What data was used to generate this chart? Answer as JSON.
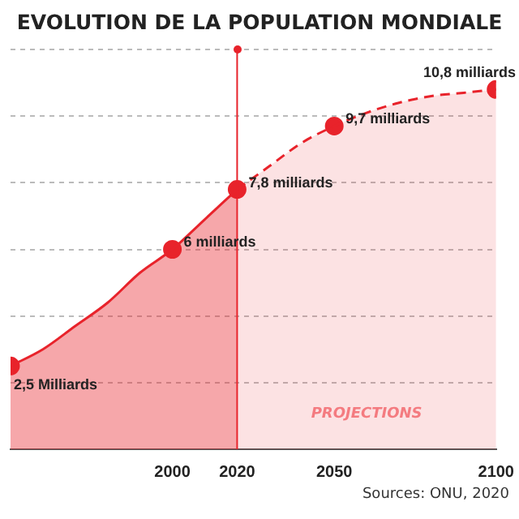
{
  "chart_data": {
    "type": "area",
    "title": "EVOLUTION DE LA POPULATION MONDIALE",
    "series": [
      {
        "color": "#e8232b",
        "line_style": "solid",
        "x": [
          1950,
          1960,
          1970,
          1980,
          1990,
          2000,
          2010,
          2020
        ],
        "values": [
          2.5,
          3.0,
          3.7,
          4.4,
          5.3,
          6,
          6.9,
          7.8
        ]
      },
      {
        "color": "#e8232b",
        "line_style": "dashed",
        "x": [
          2020,
          2030,
          2040,
          2050,
          2060,
          2070,
          2080,
          2090,
          2100
        ],
        "values": [
          7.8,
          8.5,
          9.2,
          9.7,
          10.1,
          10.4,
          10.6,
          10.7,
          10.8
        ]
      },
      {
        "type": "scatter",
        "color": "#e8232b",
        "marker": "circle",
        "x": [
          1950,
          2000,
          2020,
          2050,
          2100
        ],
        "values": [
          2.5,
          6,
          7.8,
          9.7,
          10.8
        ],
        "value_labels": [
          "2,5 Milliards",
          "6 milliards",
          "7,8 milliards",
          "9,7 milliards",
          "10,8 milliards"
        ]
      }
    ],
    "xlim": [
      1950,
      2100
    ],
    "xticks": [
      2000,
      2020,
      2050,
      2100
    ],
    "ylim": [
      0,
      12
    ],
    "tick_labels": "x",
    "grid": "y",
    "legend": false,
    "ref_lines": [
      {
        "axis": "x",
        "value": 2020,
        "color": "#e8232b"
      }
    ],
    "annotations": [
      "PROJECTIONS",
      "Sources: ONU, 2020"
    ]
  }
}
